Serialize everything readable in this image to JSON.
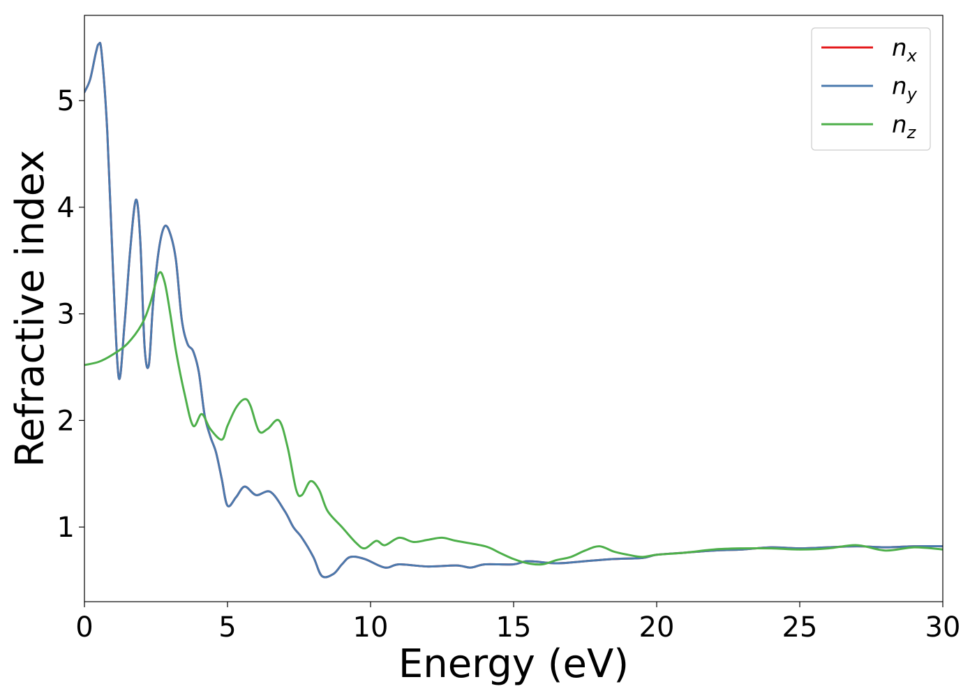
{
  "chart_data": {
    "type": "line",
    "xlabel": "Energy (eV)",
    "ylabel": "Refractive index",
    "xlim": [
      0,
      30
    ],
    "ylim": [
      0.3,
      5.8
    ],
    "xticks": [
      "0",
      "5",
      "10",
      "15",
      "20",
      "25",
      "30"
    ],
    "yticks": [
      "1",
      "2",
      "3",
      "4",
      "5"
    ],
    "legend_position": "top-right",
    "grid": false,
    "series": [
      {
        "name": "n_x",
        "base": "n",
        "sub": "x",
        "color": "#e41a1c",
        "points": [
          [
            0,
            5.08
          ],
          [
            0.2,
            5.2
          ],
          [
            0.4,
            5.45
          ],
          [
            0.5,
            5.53
          ],
          [
            0.6,
            5.45
          ],
          [
            0.8,
            4.7
          ],
          [
            1.0,
            3.4
          ],
          [
            1.2,
            2.4
          ],
          [
            1.4,
            2.9
          ],
          [
            1.6,
            3.6
          ],
          [
            1.8,
            4.07
          ],
          [
            1.95,
            3.7
          ],
          [
            2.1,
            2.7
          ],
          [
            2.25,
            2.52
          ],
          [
            2.4,
            3.1
          ],
          [
            2.6,
            3.6
          ],
          [
            2.8,
            3.82
          ],
          [
            3.0,
            3.75
          ],
          [
            3.2,
            3.5
          ],
          [
            3.4,
            2.95
          ],
          [
            3.6,
            2.72
          ],
          [
            3.8,
            2.65
          ],
          [
            4.0,
            2.45
          ],
          [
            4.2,
            2.05
          ],
          [
            4.4,
            1.85
          ],
          [
            4.6,
            1.7
          ],
          [
            4.8,
            1.45
          ],
          [
            5.0,
            1.2
          ],
          [
            5.3,
            1.28
          ],
          [
            5.6,
            1.38
          ],
          [
            6.0,
            1.3
          ],
          [
            6.5,
            1.33
          ],
          [
            7.0,
            1.15
          ],
          [
            7.3,
            1.0
          ],
          [
            7.6,
            0.9
          ],
          [
            8.0,
            0.72
          ],
          [
            8.3,
            0.54
          ],
          [
            8.7,
            0.56
          ],
          [
            9.0,
            0.65
          ],
          [
            9.3,
            0.72
          ],
          [
            9.8,
            0.7
          ],
          [
            10.5,
            0.62
          ],
          [
            11,
            0.65
          ],
          [
            12,
            0.63
          ],
          [
            13,
            0.64
          ],
          [
            13.5,
            0.62
          ],
          [
            14,
            0.65
          ],
          [
            15,
            0.65
          ],
          [
            15.5,
            0.68
          ],
          [
            16.5,
            0.66
          ],
          [
            17.5,
            0.68
          ],
          [
            18.5,
            0.7
          ],
          [
            19.5,
            0.71
          ],
          [
            20,
            0.74
          ],
          [
            21,
            0.76
          ],
          [
            22,
            0.78
          ],
          [
            23,
            0.79
          ],
          [
            24,
            0.81
          ],
          [
            25,
            0.8
          ],
          [
            26,
            0.81
          ],
          [
            27,
            0.82
          ],
          [
            28,
            0.81
          ],
          [
            29,
            0.82
          ],
          [
            30,
            0.82
          ]
        ]
      },
      {
        "name": "n_y",
        "base": "n",
        "sub": "y",
        "color": "#4a79ad",
        "points": [
          [
            0,
            5.08
          ],
          [
            0.2,
            5.2
          ],
          [
            0.4,
            5.45
          ],
          [
            0.5,
            5.53
          ],
          [
            0.6,
            5.45
          ],
          [
            0.8,
            4.7
          ],
          [
            1.0,
            3.4
          ],
          [
            1.2,
            2.4
          ],
          [
            1.4,
            2.9
          ],
          [
            1.6,
            3.6
          ],
          [
            1.8,
            4.07
          ],
          [
            1.95,
            3.7
          ],
          [
            2.1,
            2.7
          ],
          [
            2.25,
            2.52
          ],
          [
            2.4,
            3.1
          ],
          [
            2.6,
            3.6
          ],
          [
            2.8,
            3.82
          ],
          [
            3.0,
            3.75
          ],
          [
            3.2,
            3.5
          ],
          [
            3.4,
            2.95
          ],
          [
            3.6,
            2.72
          ],
          [
            3.8,
            2.65
          ],
          [
            4.0,
            2.45
          ],
          [
            4.2,
            2.05
          ],
          [
            4.4,
            1.85
          ],
          [
            4.6,
            1.7
          ],
          [
            4.8,
            1.45
          ],
          [
            5.0,
            1.2
          ],
          [
            5.3,
            1.28
          ],
          [
            5.6,
            1.38
          ],
          [
            6.0,
            1.3
          ],
          [
            6.5,
            1.33
          ],
          [
            7.0,
            1.15
          ],
          [
            7.3,
            1.0
          ],
          [
            7.6,
            0.9
          ],
          [
            8.0,
            0.72
          ],
          [
            8.3,
            0.54
          ],
          [
            8.7,
            0.56
          ],
          [
            9.0,
            0.65
          ],
          [
            9.3,
            0.72
          ],
          [
            9.8,
            0.7
          ],
          [
            10.5,
            0.62
          ],
          [
            11,
            0.65
          ],
          [
            12,
            0.63
          ],
          [
            13,
            0.64
          ],
          [
            13.5,
            0.62
          ],
          [
            14,
            0.65
          ],
          [
            15,
            0.65
          ],
          [
            15.5,
            0.68
          ],
          [
            16.5,
            0.66
          ],
          [
            17.5,
            0.68
          ],
          [
            18.5,
            0.7
          ],
          [
            19.5,
            0.71
          ],
          [
            20,
            0.74
          ],
          [
            21,
            0.76
          ],
          [
            22,
            0.78
          ],
          [
            23,
            0.79
          ],
          [
            24,
            0.81
          ],
          [
            25,
            0.8
          ],
          [
            26,
            0.81
          ],
          [
            27,
            0.82
          ],
          [
            28,
            0.81
          ],
          [
            29,
            0.82
          ],
          [
            30,
            0.82
          ]
        ]
      },
      {
        "name": "n_z",
        "base": "n",
        "sub": "z",
        "color": "#4daf4a",
        "points": [
          [
            0,
            2.52
          ],
          [
            0.5,
            2.55
          ],
          [
            1.0,
            2.62
          ],
          [
            1.5,
            2.72
          ],
          [
            2.0,
            2.9
          ],
          [
            2.3,
            3.1
          ],
          [
            2.6,
            3.38
          ],
          [
            2.8,
            3.3
          ],
          [
            3.0,
            3.0
          ],
          [
            3.2,
            2.65
          ],
          [
            3.5,
            2.25
          ],
          [
            3.8,
            1.95
          ],
          [
            4.1,
            2.06
          ],
          [
            4.4,
            1.92
          ],
          [
            4.8,
            1.82
          ],
          [
            5.0,
            1.95
          ],
          [
            5.3,
            2.12
          ],
          [
            5.6,
            2.2
          ],
          [
            5.8,
            2.14
          ],
          [
            6.1,
            1.9
          ],
          [
            6.4,
            1.92
          ],
          [
            6.8,
            2.0
          ],
          [
            7.1,
            1.75
          ],
          [
            7.4,
            1.35
          ],
          [
            7.6,
            1.3
          ],
          [
            7.9,
            1.43
          ],
          [
            8.2,
            1.35
          ],
          [
            8.5,
            1.15
          ],
          [
            9.0,
            1.0
          ],
          [
            9.5,
            0.85
          ],
          [
            9.8,
            0.8
          ],
          [
            10.2,
            0.87
          ],
          [
            10.5,
            0.83
          ],
          [
            11,
            0.9
          ],
          [
            11.5,
            0.86
          ],
          [
            12,
            0.88
          ],
          [
            12.5,
            0.9
          ],
          [
            13,
            0.87
          ],
          [
            14,
            0.82
          ],
          [
            14.5,
            0.76
          ],
          [
            15,
            0.7
          ],
          [
            15.5,
            0.66
          ],
          [
            16,
            0.65
          ],
          [
            16.5,
            0.69
          ],
          [
            17,
            0.72
          ],
          [
            17.5,
            0.78
          ],
          [
            18,
            0.82
          ],
          [
            18.5,
            0.77
          ],
          [
            19,
            0.74
          ],
          [
            19.5,
            0.72
          ],
          [
            20,
            0.74
          ],
          [
            21,
            0.76
          ],
          [
            22,
            0.79
          ],
          [
            23,
            0.8
          ],
          [
            24,
            0.8
          ],
          [
            25,
            0.79
          ],
          [
            26,
            0.8
          ],
          [
            27,
            0.83
          ],
          [
            28,
            0.78
          ],
          [
            29,
            0.81
          ],
          [
            30,
            0.79
          ]
        ]
      }
    ]
  }
}
